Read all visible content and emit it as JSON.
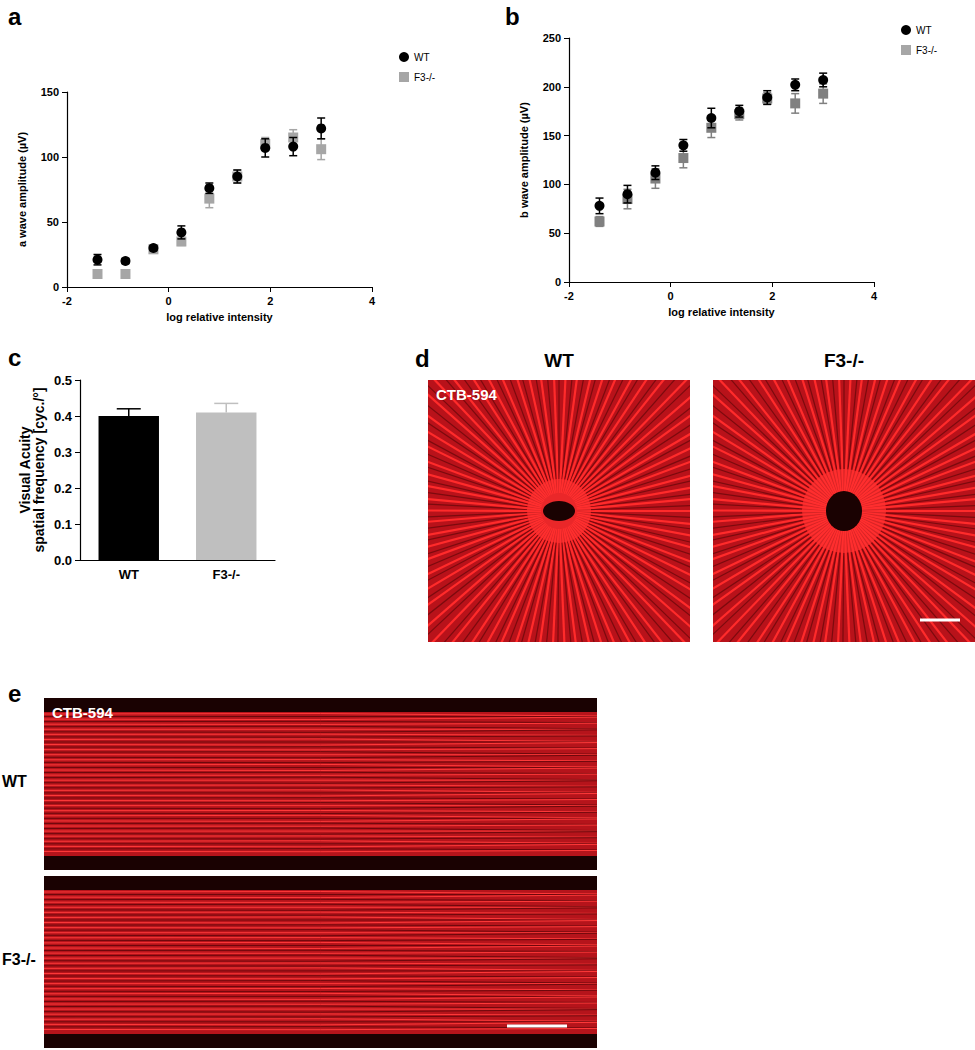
{
  "chart_data": [
    {
      "panel": "a",
      "type": "scatter",
      "xlabel": "log relative intensity",
      "ylabel": "a wave amplitude (µV)",
      "x": [
        -1.4,
        -0.85,
        -0.3,
        0.25,
        0.8,
        1.35,
        1.9,
        2.45,
        3.0
      ],
      "series": [
        {
          "name": "WT",
          "color": "#000000",
          "marker": "circle",
          "values": [
            21,
            20,
            30,
            42,
            76,
            85,
            107,
            108,
            122
          ],
          "errors": [
            4,
            2,
            2,
            5,
            4,
            5,
            7,
            7,
            8
          ]
        },
        {
          "name": "F3-/-",
          "color": "#a6a6a6",
          "marker": "square",
          "values": [
            10,
            10,
            29,
            35,
            68,
            85,
            110,
            115,
            106
          ],
          "errors": [
            2,
            3,
            2,
            3,
            7,
            5,
            5,
            6,
            8
          ]
        }
      ],
      "xlim": [
        -2,
        4
      ],
      "xticks": [
        -2,
        0,
        2,
        4
      ],
      "ylim": [
        0,
        150
      ],
      "yticks": [
        0,
        50,
        100,
        150
      ],
      "grid": false,
      "legend": "top-right"
    },
    {
      "panel": "b",
      "type": "scatter",
      "xlabel": "log relative intensity",
      "ylabel": "b wave amplitude (µV)",
      "x": [
        -1.4,
        -0.85,
        -0.3,
        0.25,
        0.8,
        1.35,
        1.9,
        2.45,
        3.0
      ],
      "series": [
        {
          "name": "WT",
          "color": "#000000",
          "marker": "circle",
          "values": [
            78,
            90,
            112,
            140,
            168,
            175,
            189,
            202,
            207
          ],
          "errors": [
            8,
            9,
            7,
            6,
            10,
            6,
            7,
            6,
            7
          ]
        },
        {
          "name": "F3-/-",
          "color": "#808080",
          "marker": "square",
          "values": [
            62,
            85,
            106,
            127,
            158,
            172,
            188,
            183,
            193
          ],
          "errors": [
            5,
            10,
            10,
            10,
            10,
            6,
            6,
            10,
            10
          ]
        }
      ],
      "xlim": [
        -2,
        4
      ],
      "xticks": [
        -2,
        0,
        2,
        4
      ],
      "ylim": [
        0,
        250
      ],
      "yticks": [
        0,
        50,
        100,
        150,
        200,
        250
      ],
      "grid": false,
      "legend": "top-right"
    },
    {
      "panel": "c",
      "type": "bar",
      "ylabel": "Visual Acuity\nspatial frequency [cyc./°]",
      "categories": [
        "WT",
        "F3-/-"
      ],
      "values": [
        0.4,
        0.41
      ],
      "errors": [
        0.02,
        0.025
      ],
      "colors": [
        "#000000",
        "#bfbfbf"
      ],
      "ylim": [
        0,
        0.5
      ],
      "yticks": [
        {
          "value": 0,
          "label": "0.0"
        },
        0.1,
        0.2,
        0.3,
        0.4,
        0.5
      ],
      "grid": false
    }
  ],
  "image_panels": [
    {
      "panel": "d",
      "stain": "CTB-594",
      "titles": [
        "WT",
        "F3-/-"
      ]
    },
    {
      "panel": "e",
      "stain": "CTB-594",
      "rows": [
        "WT",
        "F3-/-"
      ]
    }
  ]
}
